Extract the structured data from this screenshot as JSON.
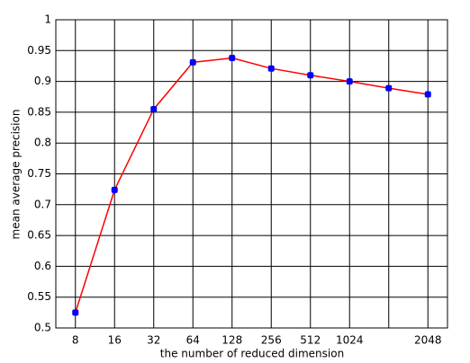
{
  "chart_data": {
    "type": "line",
    "x_label": "the number of reduced dimension",
    "y_label": "mean average precision",
    "categories": [
      "8",
      "16",
      "32",
      "64",
      "128",
      "256",
      "512",
      "1024",
      null,
      "2048"
    ],
    "series": [
      {
        "color": "#ff0000",
        "marker_color": "#0000ff",
        "values": [
          0.525,
          0.724,
          0.855,
          0.931,
          0.938,
          0.921,
          0.91,
          0.9,
          0.889,
          0.879
        ]
      }
    ],
    "ylim": [
      0.5,
      1
    ],
    "yticks": [
      0.5,
      0.55,
      0.6,
      0.65,
      0.7,
      0.75,
      0.8,
      0.85,
      0.9,
      0.95,
      1
    ],
    "grid": true
  }
}
